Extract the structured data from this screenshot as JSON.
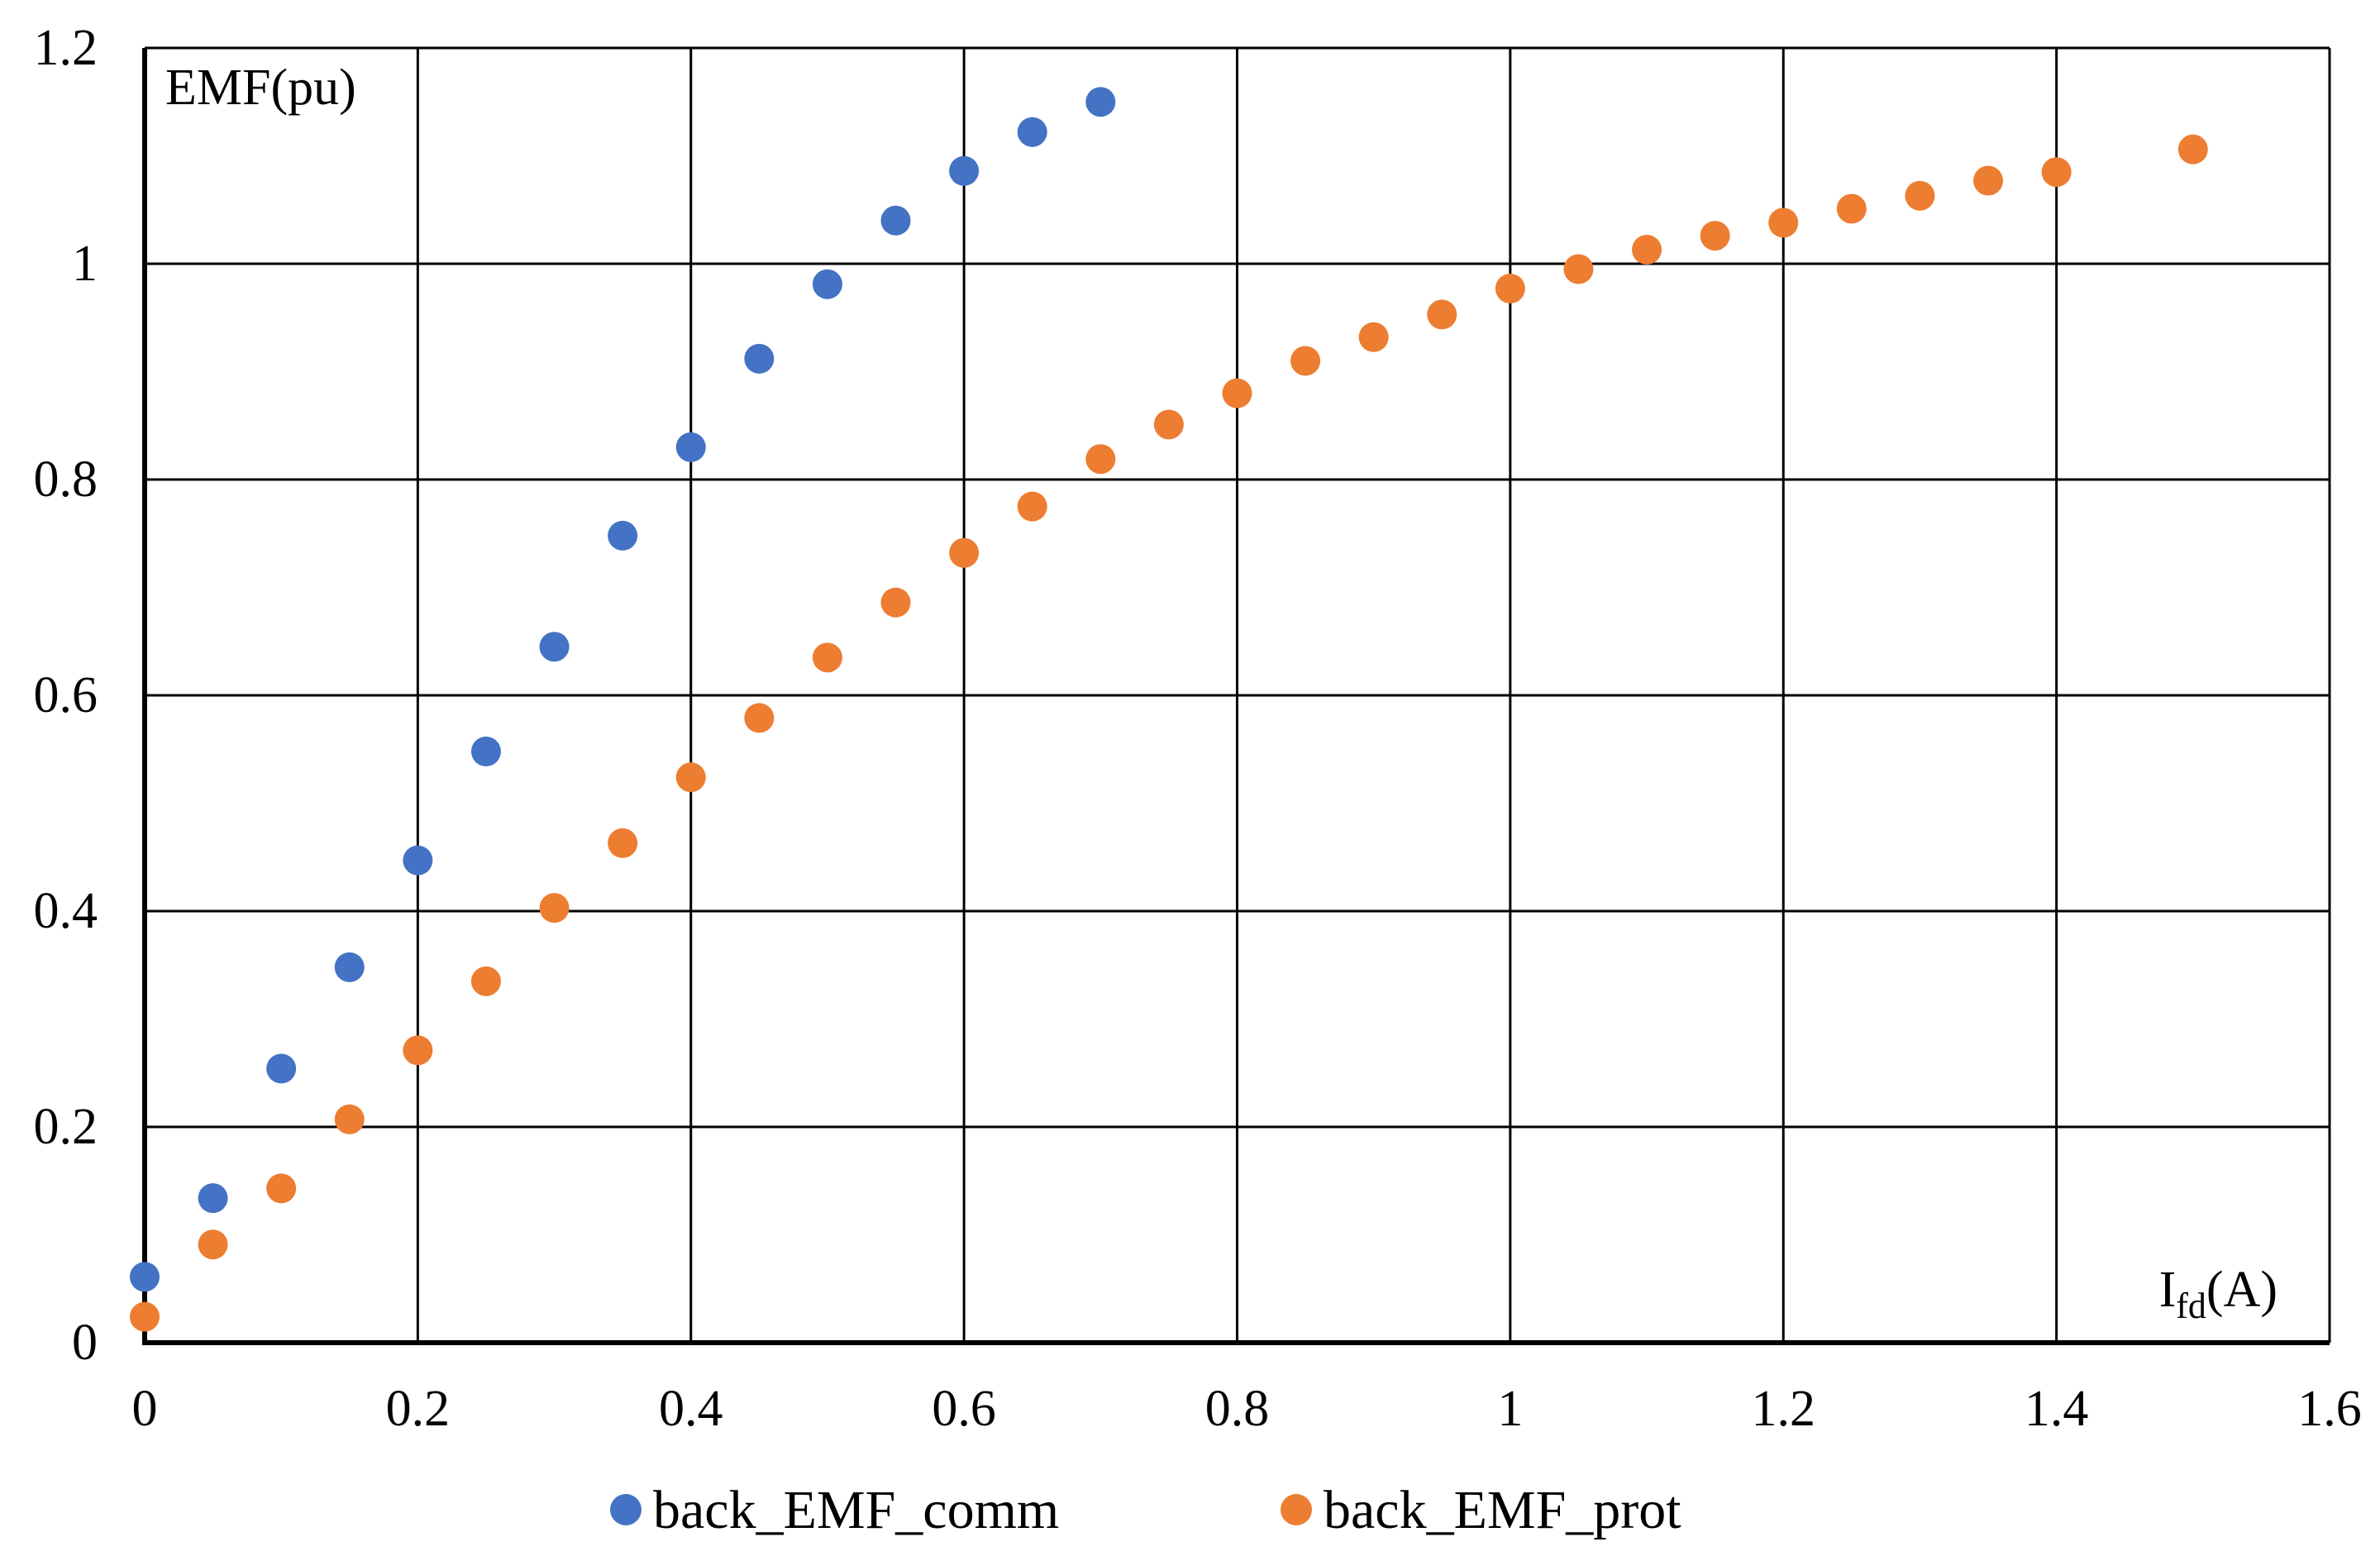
{
  "chart_data": {
    "type": "scatter",
    "title": "",
    "xlabel": {
      "main": "I",
      "sub": "fd",
      "unit": "(A)"
    },
    "ylabel": "EMF(pu)",
    "xlim": [
      0,
      1.6
    ],
    "ylim": [
      0,
      1.2
    ],
    "xticks": [
      0,
      0.2,
      0.4,
      0.6,
      0.8,
      1,
      1.2,
      1.4,
      1.6
    ],
    "yticks": [
      0,
      0.2,
      0.4,
      0.6,
      0.8,
      1,
      1.2
    ],
    "xtick_labels": [
      "0",
      "0.2",
      "0.4",
      "0.6",
      "0.8",
      "1",
      "1.2",
      "1.4",
      "1.6"
    ],
    "ytick_labels": [
      "0",
      "0.2",
      "0.4",
      "0.6",
      "0.8",
      "1",
      "1.2"
    ],
    "grid": true,
    "legend_position": "bottom",
    "series": [
      {
        "name": "back_EMF_comm",
        "color": "#4472C4",
        "x": [
          0,
          0.05,
          0.1,
          0.15,
          0.2,
          0.25,
          0.3,
          0.35,
          0.4,
          0.45,
          0.5,
          0.55,
          0.6,
          0.65,
          0.7
        ],
        "y": [
          0.061,
          0.134,
          0.254,
          0.348,
          0.447,
          0.548,
          0.645,
          0.748,
          0.83,
          0.912,
          0.981,
          1.04,
          1.086,
          1.122,
          1.15
        ]
      },
      {
        "name": "back_EMF_prot",
        "color": "#ED7D31",
        "x": [
          0,
          0.05,
          0.1,
          0.15,
          0.2,
          0.25,
          0.3,
          0.35,
          0.4,
          0.45,
          0.5,
          0.55,
          0.6,
          0.65,
          0.7,
          0.75,
          0.8,
          0.85,
          0.9,
          0.95,
          1,
          1.05,
          1.1,
          1.15,
          1.2,
          1.25,
          1.3,
          1.35,
          1.4,
          1.5
        ],
        "y": [
          0.024,
          0.091,
          0.143,
          0.207,
          0.271,
          0.335,
          0.403,
          0.463,
          0.524,
          0.579,
          0.635,
          0.686,
          0.732,
          0.775,
          0.819,
          0.851,
          0.88,
          0.91,
          0.932,
          0.953,
          0.977,
          0.995,
          1.013,
          1.026,
          1.038,
          1.051,
          1.063,
          1.077,
          1.085,
          1.106
        ]
      }
    ]
  }
}
